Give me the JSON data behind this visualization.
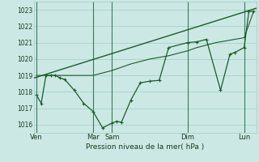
{
  "xlabel": "Pression niveau de la mer( hPa )",
  "bg_color": "#cce8e4",
  "grid_color": "#9ecfc8",
  "line_color": "#1a5c28",
  "vline_color": "#5a9a7a",
  "ylim": [
    1015.5,
    1023.5
  ],
  "yticks": [
    1016,
    1017,
    1018,
    1019,
    1020,
    1021,
    1022,
    1023
  ],
  "xtick_labels": [
    "Ven",
    "",
    "",
    "",
    "",
    "",
    "Mar",
    "Sam",
    "",
    "",
    "",
    "",
    "",
    "",
    "",
    "Dim",
    "",
    "",
    "",
    "",
    "",
    "",
    "Lun"
  ],
  "xtick_display": [
    "Ven",
    "Mar",
    "Sam",
    "Dim",
    "Lun"
  ],
  "xtick_pos": [
    0,
    6,
    8,
    16,
    22
  ],
  "vline_pos": [
    0,
    6,
    8,
    16,
    22
  ],
  "xlim": [
    -0.3,
    23.3
  ],
  "trend_line": {
    "x": [
      -0.5,
      23.3
    ],
    "y": [
      1018.8,
      1023.1
    ]
  },
  "second_line": {
    "x": [
      0,
      6,
      8,
      9,
      10,
      11,
      12,
      13,
      14,
      16,
      17,
      18,
      19,
      20,
      21,
      22,
      23
    ],
    "y": [
      1019.0,
      1019.0,
      1019.3,
      1019.5,
      1019.7,
      1019.85,
      1020.0,
      1020.1,
      1020.2,
      1020.5,
      1020.7,
      1020.85,
      1021.0,
      1021.1,
      1021.2,
      1021.3,
      1022.9
    ]
  },
  "main_line": {
    "x": [
      0,
      0.5,
      1.0,
      1.5,
      2.0,
      2.5,
      3.0,
      4.0,
      5.0,
      6.0,
      7.0,
      8.0,
      8.5,
      9.0,
      10.0,
      11.0,
      12.0,
      13.0,
      14.0,
      16.0,
      17.0,
      18.0,
      19.5,
      20.5,
      21.0,
      22.0,
      22.5,
      23.0
    ],
    "y": [
      1017.8,
      1017.3,
      1019.0,
      1019.0,
      1019.0,
      1018.85,
      1018.75,
      1018.1,
      1017.3,
      1016.8,
      1015.8,
      1016.1,
      1016.2,
      1016.15,
      1017.5,
      1018.55,
      1018.65,
      1018.7,
      1020.7,
      1021.0,
      1021.05,
      1021.2,
      1018.1,
      1020.3,
      1020.4,
      1020.7,
      1022.9,
      1022.9
    ]
  }
}
